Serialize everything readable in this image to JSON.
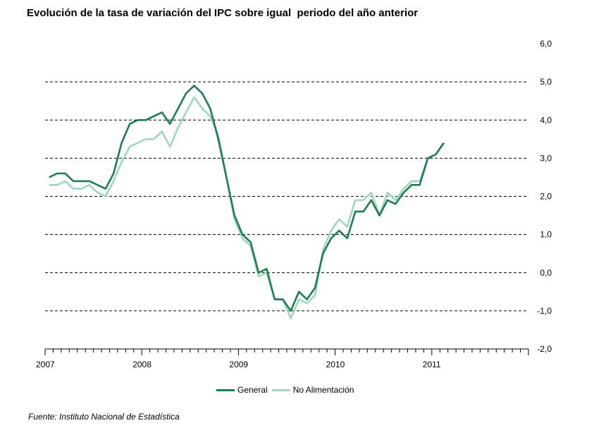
{
  "title": "Evolución de la tasa de variación del IPC sobre igual  periodo del año anterior",
  "source": "Fuente: Instituto Nacional de Estadística",
  "colors": {
    "general": "#1e7d4f",
    "no_alimentacion": "#9fd6bf",
    "grid": "#000000"
  },
  "chart_data": {
    "type": "line",
    "ylim": [
      -2,
      6
    ],
    "y_ticks": [
      "6,0",
      "5,0",
      "4,0",
      "3,0",
      "2,0",
      "1,0",
      "0,0",
      "-1,0",
      "-2,0"
    ],
    "y_tick_values": [
      6,
      5,
      4,
      3,
      2,
      1,
      0,
      -1,
      -2
    ],
    "x_tick_labels": [
      "2007",
      "2008",
      "2009",
      "2010",
      "2011"
    ],
    "x_range": [
      "2007-01",
      "2011-12"
    ],
    "grid": "horizontal dashed",
    "legend_position": "bottom",
    "x": [
      "2007-01",
      "2007-02",
      "2007-03",
      "2007-04",
      "2007-05",
      "2007-06",
      "2007-07",
      "2007-08",
      "2007-09",
      "2007-10",
      "2007-11",
      "2007-12",
      "2008-01",
      "2008-02",
      "2008-03",
      "2008-04",
      "2008-05",
      "2008-06",
      "2008-07",
      "2008-08",
      "2008-09",
      "2008-10",
      "2008-11",
      "2008-12",
      "2009-01",
      "2009-02",
      "2009-03",
      "2009-04",
      "2009-05",
      "2009-06",
      "2009-07",
      "2009-08",
      "2009-09",
      "2009-10",
      "2009-11",
      "2009-12",
      "2010-01",
      "2010-02",
      "2010-03",
      "2010-04",
      "2010-05",
      "2010-06",
      "2010-07",
      "2010-08",
      "2010-09",
      "2010-10",
      "2010-11",
      "2010-12",
      "2011-01",
      "2011-02"
    ],
    "series": [
      {
        "name": "General",
        "values": [
          2.5,
          2.6,
          2.6,
          2.4,
          2.4,
          2.4,
          2.3,
          2.2,
          2.6,
          3.4,
          3.9,
          4.0,
          4.0,
          4.1,
          4.2,
          3.9,
          4.3,
          4.7,
          4.9,
          4.7,
          4.3,
          3.5,
          2.5,
          1.5,
          1.0,
          0.8,
          -0.0,
          0.1,
          -0.7,
          -0.7,
          -1.0,
          -0.5,
          -0.7,
          -0.4,
          0.5,
          0.9,
          1.1,
          0.9,
          1.6,
          1.6,
          1.9,
          1.5,
          1.9,
          1.8,
          2.1,
          2.3,
          2.3,
          3.0,
          3.1,
          3.4
        ]
      },
      {
        "name": "No Alimentación",
        "values": [
          2.3,
          2.3,
          2.4,
          2.2,
          2.2,
          2.3,
          2.1,
          2.0,
          2.4,
          2.9,
          3.3,
          3.4,
          3.5,
          3.5,
          3.7,
          3.3,
          3.8,
          4.2,
          4.6,
          4.3,
          4.1,
          3.6,
          2.5,
          1.4,
          0.9,
          0.7,
          -0.1,
          -0.0,
          -0.7,
          -0.7,
          -1.2,
          -0.7,
          -0.8,
          -0.6,
          0.6,
          1.1,
          1.4,
          1.2,
          1.9,
          1.9,
          2.1,
          1.5,
          2.1,
          1.9,
          2.2,
          2.4,
          2.4,
          3.0,
          3.1,
          3.4
        ]
      }
    ]
  }
}
